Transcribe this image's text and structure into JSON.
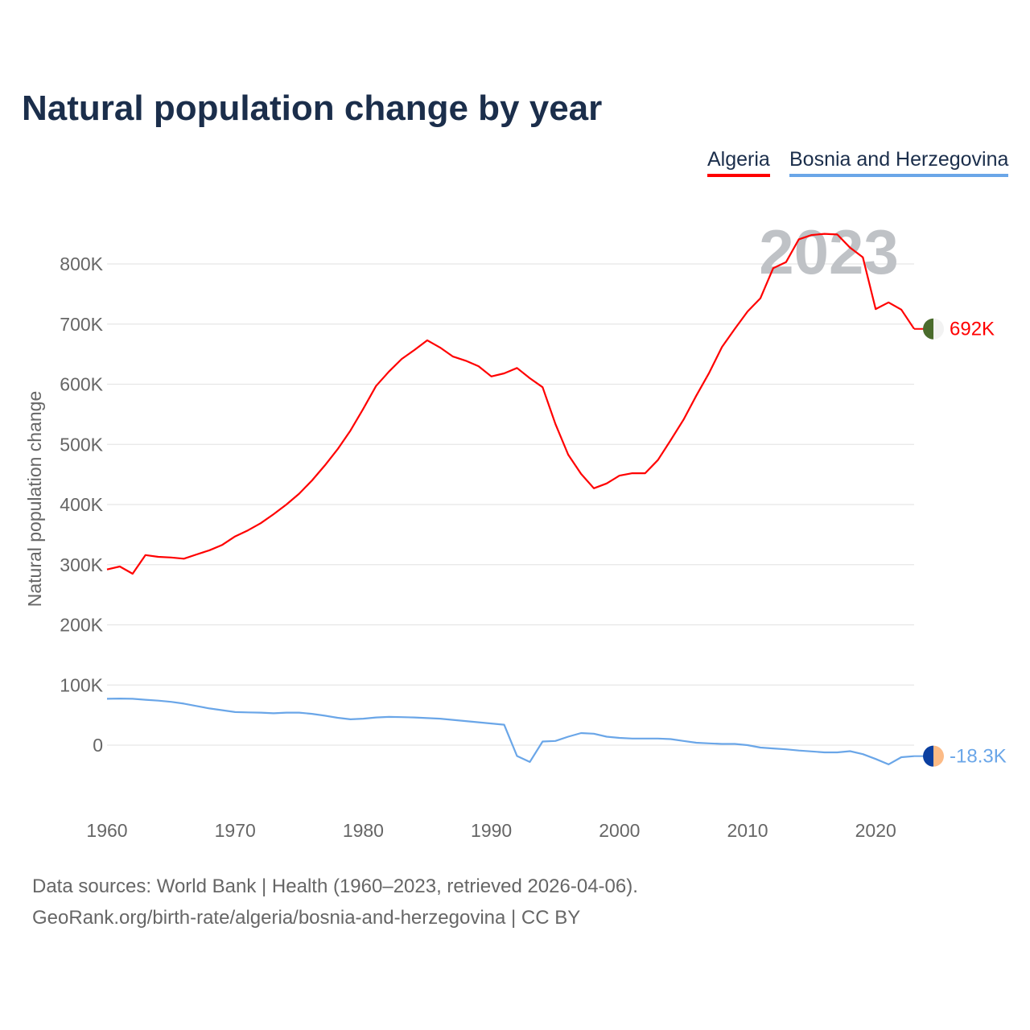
{
  "title": "Natural population change by year",
  "footer": {
    "line1": "Data sources: World Bank | Health (1960–2023, retrieved 2026-04-06).",
    "line2": "GeoRank.org/birth-rate/algeria/bosnia-and-herzegovina | CC BY"
  },
  "chart_data": {
    "type": "line",
    "title": "Natural population change by year",
    "ylabel": "Natural population change",
    "xlabel": "",
    "watermark": "2023",
    "xlim": [
      1960,
      2023
    ],
    "ylim": [
      -100000,
      850000
    ],
    "x_ticks": [
      1960,
      1970,
      1980,
      1990,
      2000,
      2010,
      2020
    ],
    "y_ticks": [
      {
        "v": 0,
        "label": "0"
      },
      {
        "v": 100000,
        "label": "100K"
      },
      {
        "v": 200000,
        "label": "200K"
      },
      {
        "v": 300000,
        "label": "300K"
      },
      {
        "v": 400000,
        "label": "400K"
      },
      {
        "v": 500000,
        "label": "500K"
      },
      {
        "v": 600000,
        "label": "600K"
      },
      {
        "v": 700000,
        "label": "700K"
      },
      {
        "v": 800000,
        "label": "800K"
      }
    ],
    "grid": true,
    "legend_position": "top-right",
    "x": [
      1960,
      1961,
      1962,
      1963,
      1964,
      1965,
      1966,
      1967,
      1968,
      1969,
      1970,
      1971,
      1972,
      1973,
      1974,
      1975,
      1976,
      1977,
      1978,
      1979,
      1980,
      1981,
      1982,
      1983,
      1984,
      1985,
      1986,
      1987,
      1988,
      1989,
      1990,
      1991,
      1992,
      1993,
      1994,
      1995,
      1996,
      1997,
      1998,
      1999,
      2000,
      2001,
      2002,
      2003,
      2004,
      2005,
      2006,
      2007,
      2008,
      2009,
      2010,
      2011,
      2012,
      2013,
      2014,
      2015,
      2016,
      2017,
      2018,
      2019,
      2020,
      2021,
      2022,
      2023
    ],
    "series": [
      {
        "name": "Algeria",
        "color": "#ff0000",
        "end_label": "692K",
        "flag": [
          "#4a6b2c",
          "#f2f2f2"
        ],
        "values": [
          292000,
          297000,
          285000,
          316000,
          313000,
          312000,
          310000,
          317000,
          324000,
          333000,
          347000,
          357000,
          369000,
          384000,
          400000,
          418000,
          440000,
          465000,
          492000,
          523000,
          559000,
          597000,
          621000,
          642000,
          657000,
          673000,
          661000,
          646000,
          639000,
          630000,
          613000,
          618000,
          627000,
          610000,
          595000,
          534000,
          483000,
          451000,
          427000,
          435000,
          448000,
          452000,
          452000,
          474000,
          507000,
          541000,
          581000,
          619000,
          662000,
          692000,
          721000,
          743000,
          793000,
          803000,
          841000,
          848000,
          850000,
          849000,
          827000,
          811000,
          725000,
          736000,
          724000,
          692000
        ]
      },
      {
        "name": "Bosnia and Herzegovina",
        "color": "#6aa6e8",
        "end_label": "-18.3K",
        "flag": [
          "#0b3fa0",
          "#fcbb86"
        ],
        "values": [
          77000,
          77500,
          77000,
          75500,
          74000,
          72000,
          69000,
          65000,
          61000,
          58000,
          55000,
          54500,
          54000,
          53000,
          54000,
          54000,
          52000,
          49000,
          45500,
          43000,
          44000,
          46000,
          47000,
          46500,
          46000,
          45000,
          44000,
          42000,
          40000,
          38000,
          36000,
          34000,
          -18000,
          -28000,
          6000,
          7000,
          14000,
          20000,
          19000,
          14000,
          12000,
          11000,
          11000,
          11000,
          10000,
          7000,
          4000,
          3000,
          2000,
          2000,
          0,
          -4000,
          -5500,
          -7000,
          -9000,
          -10500,
          -12000,
          -12000,
          -10000,
          -15000,
          -23000,
          -32000,
          -20000,
          -18300
        ]
      }
    ]
  }
}
